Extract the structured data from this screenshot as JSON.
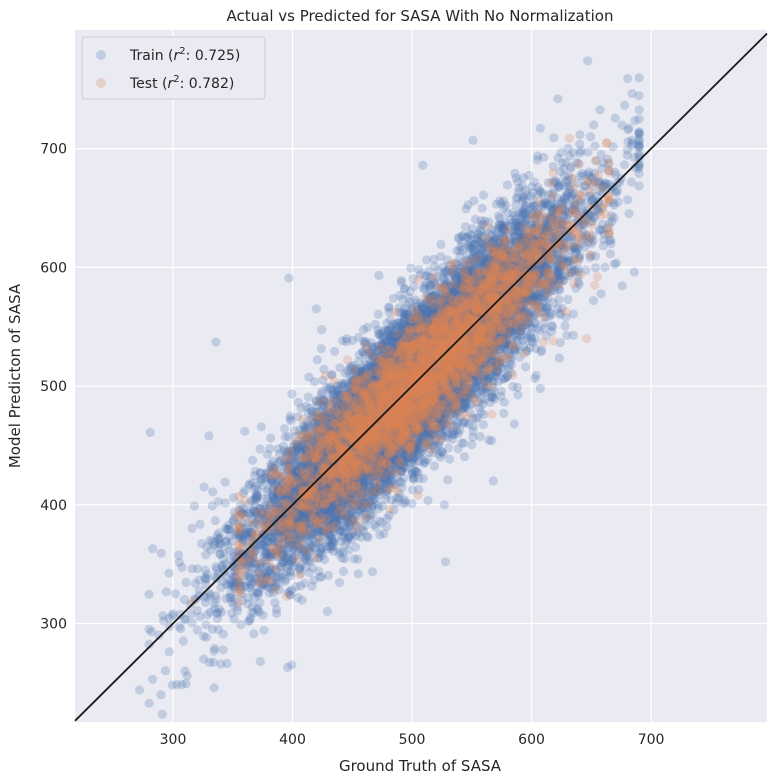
{
  "chart_data": {
    "type": "scatter",
    "title": "Actual vs Predicted for SASA With No Normalization",
    "xlabel": "Ground Truth of SASA",
    "ylabel": "Model Predicton of SASA",
    "xlim": [
      218,
      797
    ],
    "ylim": [
      217,
      800
    ],
    "xticks": [
      300,
      400,
      500,
      600,
      700
    ],
    "yticks": [
      300,
      400,
      500,
      600,
      700
    ],
    "grid": true,
    "legend_position": "top-left",
    "reference_line": {
      "label": "",
      "slope": 1,
      "intercept": 0,
      "color": "#1a1a1a"
    },
    "series": [
      {
        "name": "Train (r²: 0.725)",
        "legend_prefix": "Train (",
        "legend_r": "r",
        "legend_sup": "2",
        "legend_suffix": ":  0.725)",
        "color": "#4c72b0",
        "alpha": 0.25,
        "cloud": {
          "n": 12000,
          "x_mean": 500,
          "x_sd": 65,
          "x_min": 280,
          "x_max": 690,
          "y_sd": 32
        },
        "points": [
          [
            272,
            244
          ],
          [
            281,
            461
          ],
          [
            282,
            293
          ],
          [
            283,
            363
          ],
          [
            302,
            325
          ],
          [
            310,
            260
          ],
          [
            312,
            256
          ],
          [
            318,
            399
          ],
          [
            326,
            415
          ],
          [
            330,
            458
          ],
          [
            336,
            537
          ],
          [
            373,
            268
          ],
          [
            396,
            263
          ],
          [
            397,
            591
          ],
          [
            420,
            565
          ],
          [
            509,
            686
          ],
          [
            528,
            352
          ],
          [
            551,
            707
          ],
          [
            568,
            420
          ],
          [
            622,
            742
          ],
          [
            647,
            774
          ],
          [
            686,
            596
          ],
          [
            654,
            690
          ],
          [
            675,
            675
          ]
        ]
      },
      {
        "name": "Test (r²: 0.782)",
        "legend_prefix": "Test (",
        "legend_r": "r",
        "legend_sup": "2",
        "legend_suffix": ":  0.782)",
        "color": "#dd8452",
        "alpha": 0.25,
        "cloud": {
          "n": 3000,
          "x_mean": 505,
          "x_sd": 60,
          "x_min": 355,
          "x_max": 665,
          "y_sd": 25
        },
        "points": [
          [
            316,
            318
          ],
          [
            356,
            339
          ],
          [
            372,
            352
          ],
          [
            406,
            341
          ],
          [
            505,
            408
          ],
          [
            610,
            537
          ],
          [
            618,
            538
          ],
          [
            646,
            540
          ],
          [
            655,
            592
          ],
          [
            663,
            705
          ],
          [
            665,
            680
          ],
          [
            640,
            643
          ]
        ]
      }
    ]
  }
}
